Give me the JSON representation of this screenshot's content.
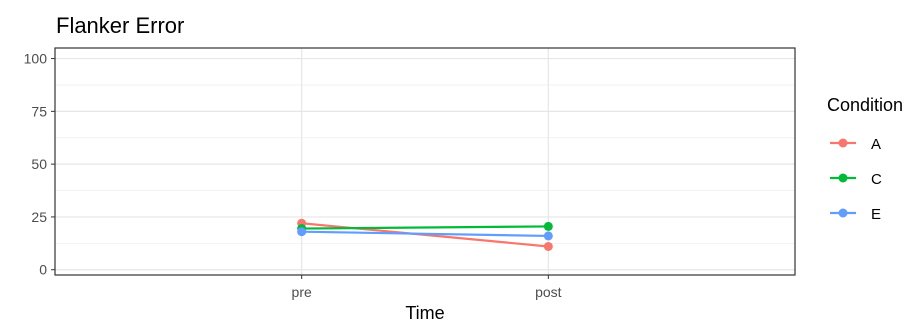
{
  "chart_data": {
    "type": "line",
    "title": "Flanker Error",
    "xlabel": "Time",
    "ylabel": "",
    "categories": [
      "pre",
      "post"
    ],
    "ylim": [
      -2.5,
      105
    ],
    "yticks": [
      0,
      25,
      50,
      75,
      100
    ],
    "grid": true,
    "legend": {
      "title": "Condition",
      "placement": "right"
    },
    "series": [
      {
        "name": "A",
        "color": "#F8766D",
        "values": [
          22,
          11
        ]
      },
      {
        "name": "C",
        "color": "#00BA38",
        "values": [
          19.5,
          20.5
        ]
      },
      {
        "name": "E",
        "color": "#619CFF",
        "values": [
          18,
          16
        ]
      }
    ]
  }
}
